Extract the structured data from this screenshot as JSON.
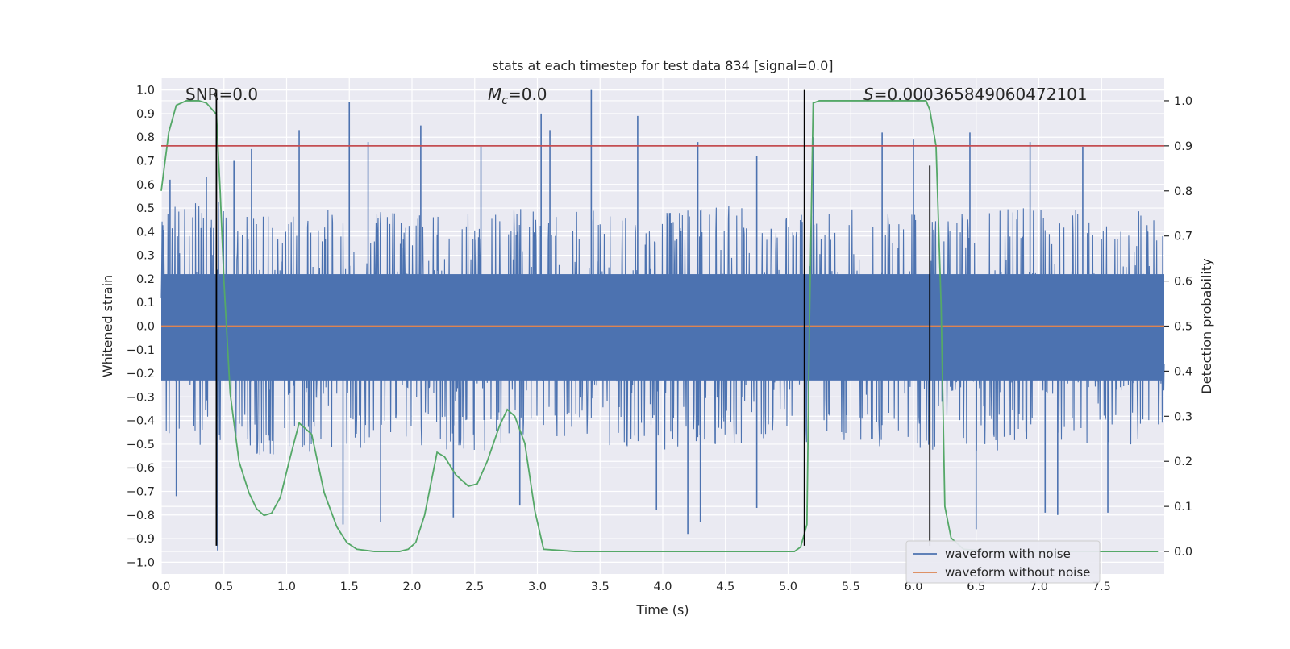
{
  "chart_data": {
    "type": "line",
    "title": "stats at each timestep for test data 834 [signal=0.0]",
    "xlabel": "Time (s)",
    "ylabel": "Whitened strain",
    "y2label": "Detection probability",
    "xlim": [
      0.0,
      8.0
    ],
    "ylim": [
      -1.05,
      1.05
    ],
    "y2lim": [
      -0.05,
      1.05
    ],
    "x_ticks": [
      0.0,
      0.5,
      1.0,
      1.5,
      2.0,
      2.5,
      3.0,
      3.5,
      4.0,
      4.5,
      5.0,
      5.5,
      6.0,
      6.5,
      7.0,
      7.5
    ],
    "x_tick_labels": [
      "0.0",
      "0.5",
      "1.0",
      "1.5",
      "2.0",
      "2.5",
      "3.0",
      "3.5",
      "4.0",
      "4.5",
      "5.0",
      "5.5",
      "6.0",
      "6.5",
      "7.0",
      "7.5"
    ],
    "y_ticks": [
      1.0,
      0.9,
      0.8,
      0.7,
      0.6,
      0.5,
      0.4,
      0.3,
      0.2,
      0.1,
      0.0,
      -0.1,
      -0.2,
      -0.3,
      -0.4,
      -0.5,
      -0.6,
      -0.7,
      -0.8,
      -0.9,
      -1.0
    ],
    "y_tick_labels": [
      "1.0",
      "0.9",
      "0.8",
      "0.7",
      "0.6",
      "0.5",
      "0.4",
      "0.3",
      "0.2",
      "0.1",
      "0.0",
      "−0.1",
      "−0.2",
      "−0.3",
      "−0.4",
      "−0.5",
      "−0.6",
      "−0.7",
      "−0.8",
      "−0.9",
      "−1.0"
    ],
    "y2_ticks": [
      1.0,
      0.9,
      0.8,
      0.7,
      0.6,
      0.5,
      0.4,
      0.3,
      0.2,
      0.1,
      0.0
    ],
    "y2_tick_labels": [
      "1.0",
      "0.9",
      "0.8",
      "0.7",
      "0.6",
      "0.5",
      "0.4",
      "0.3",
      "0.2",
      "0.1",
      "0.0"
    ],
    "annotations": {
      "snr": "SNR=0.0",
      "mc_symbol": "M",
      "mc_subscript": "c",
      "mc_value": "=0.0",
      "s_symbol": "S",
      "s_value": "=0.000365849060472101"
    },
    "series": [
      {
        "name": "waveform with noise",
        "color": "#4c72b0",
        "axis": "left",
        "kind": "noise",
        "x_range": [
          0.0,
          8.0
        ],
        "envelope_upper": [
          0.42,
          0.45,
          0.4,
          0.42,
          0.4,
          0.43,
          0.41,
          0.42,
          0.4,
          0.43,
          0.41,
          0.42,
          0.4,
          0.41,
          0.42,
          0.43,
          0.4
        ],
        "envelope_lower": [
          -0.4,
          -0.45,
          -0.48,
          -0.44,
          -0.42,
          -0.45,
          -0.4,
          -0.42,
          -0.44,
          -0.42,
          -0.41,
          -0.42,
          -0.43,
          -0.45,
          -0.42,
          -0.44,
          -0.42
        ],
        "peaks": [
          {
            "x": 0.07,
            "y": 0.62
          },
          {
            "x": 0.36,
            "y": 0.63
          },
          {
            "x": 0.58,
            "y": 0.7
          },
          {
            "x": 0.72,
            "y": 0.75
          },
          {
            "x": 1.1,
            "y": 0.83
          },
          {
            "x": 1.5,
            "y": 0.95
          },
          {
            "x": 1.65,
            "y": 0.78
          },
          {
            "x": 2.07,
            "y": 0.85
          },
          {
            "x": 2.55,
            "y": 0.76
          },
          {
            "x": 3.03,
            "y": 0.9
          },
          {
            "x": 3.1,
            "y": 0.83
          },
          {
            "x": 3.43,
            "y": 1.0
          },
          {
            "x": 3.8,
            "y": 0.89
          },
          {
            "x": 4.28,
            "y": 0.78
          },
          {
            "x": 4.75,
            "y": 0.72
          },
          {
            "x": 5.2,
            "y": 0.8
          },
          {
            "x": 5.75,
            "y": 0.82
          },
          {
            "x": 6.0,
            "y": 0.79
          },
          {
            "x": 6.45,
            "y": 0.82
          },
          {
            "x": 6.93,
            "y": 0.78
          },
          {
            "x": 7.35,
            "y": 0.76
          },
          {
            "x": 0.45,
            "y": -0.95
          },
          {
            "x": 0.12,
            "y": -0.72
          },
          {
            "x": 1.45,
            "y": -0.84
          },
          {
            "x": 1.75,
            "y": -0.83
          },
          {
            "x": 2.33,
            "y": -0.81
          },
          {
            "x": 2.86,
            "y": -0.76
          },
          {
            "x": 3.95,
            "y": -0.78
          },
          {
            "x": 4.2,
            "y": -0.88
          },
          {
            "x": 4.3,
            "y": -0.83
          },
          {
            "x": 4.75,
            "y": -0.77
          },
          {
            "x": 6.5,
            "y": -0.86
          },
          {
            "x": 7.05,
            "y": -0.79
          },
          {
            "x": 7.15,
            "y": -0.8
          },
          {
            "x": 7.55,
            "y": -0.79
          }
        ]
      },
      {
        "name": "waveform without noise",
        "color": "#dd8452",
        "axis": "left",
        "x": [
          0.0,
          8.0
        ],
        "y": [
          0.0,
          0.0
        ]
      },
      {
        "color": "#55a868",
        "axis": "right",
        "x": [
          0.0,
          0.06,
          0.12,
          0.2,
          0.3,
          0.36,
          0.44,
          0.47,
          0.5,
          0.55,
          0.62,
          0.7,
          0.76,
          0.82,
          0.88,
          0.95,
          1.02,
          1.1,
          1.2,
          1.3,
          1.4,
          1.48,
          1.56,
          1.7,
          1.9,
          1.97,
          2.03,
          2.1,
          2.2,
          2.26,
          2.35,
          2.45,
          2.52,
          2.6,
          2.7,
          2.76,
          2.82,
          2.9,
          2.98,
          3.05,
          3.3,
          3.6,
          4.0,
          4.5,
          5.05,
          5.1,
          5.15,
          5.17,
          5.2,
          5.25,
          6.1,
          6.13,
          6.18,
          6.22,
          6.25,
          6.3,
          6.4,
          6.6,
          7.0,
          7.95
        ],
        "y": [
          0.8,
          0.93,
          0.99,
          1.0,
          1.0,
          0.995,
          0.97,
          0.8,
          0.6,
          0.35,
          0.2,
          0.13,
          0.095,
          0.08,
          0.085,
          0.12,
          0.2,
          0.285,
          0.26,
          0.13,
          0.055,
          0.02,
          0.005,
          0.0,
          0.0,
          0.005,
          0.02,
          0.08,
          0.22,
          0.21,
          0.17,
          0.145,
          0.15,
          0.2,
          0.28,
          0.315,
          0.3,
          0.24,
          0.09,
          0.005,
          0.0,
          0.0,
          0.0,
          0.0,
          0.0,
          0.01,
          0.06,
          0.5,
          0.995,
          1.0,
          1.0,
          0.98,
          0.9,
          0.55,
          0.1,
          0.03,
          0.005,
          0.0,
          0.0,
          0.0
        ]
      },
      {
        "color": "#c44e52",
        "axis": "right",
        "x": [
          0.0,
          8.0
        ],
        "y": [
          0.9,
          0.9
        ]
      }
    ],
    "vlines": [
      {
        "x": 0.44,
        "y_from": -0.93,
        "y_to": 1.0,
        "color": "#000000"
      },
      {
        "x": 5.13,
        "y_from": -0.93,
        "y_to": 1.0,
        "color": "#000000"
      },
      {
        "x": 6.13,
        "y_from": -0.93,
        "y_to": 0.68,
        "color": "#000000"
      }
    ],
    "legend": {
      "placement": "lower right",
      "entries": [
        {
          "label": "waveform with noise",
          "color": "#4c72b0"
        },
        {
          "label": "waveform without noise",
          "color": "#dd8452"
        }
      ]
    },
    "grid": true,
    "style": {
      "background": "#eaeaf2",
      "grid_color": "#ffffff"
    }
  }
}
